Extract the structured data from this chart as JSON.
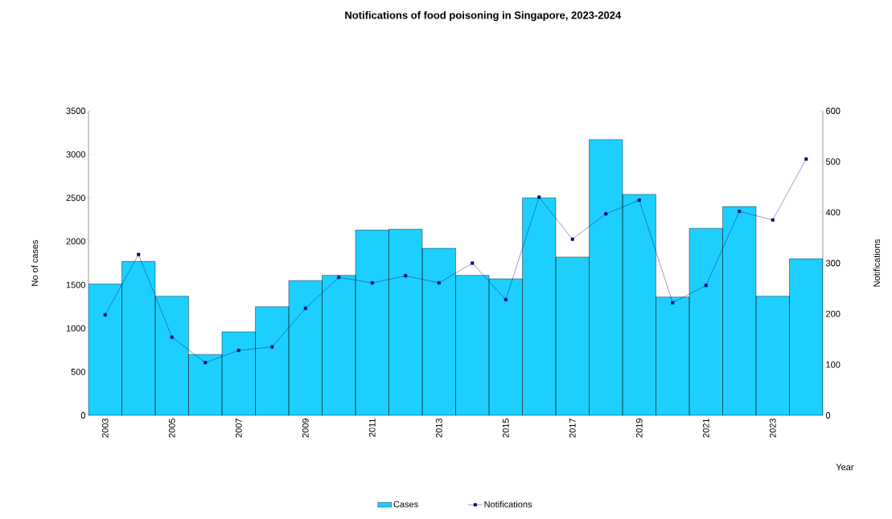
{
  "chart_data": {
    "type": "bar",
    "title": "Notifications of food poisoning in Singapore, 2023-2024",
    "xlabel": "Year",
    "ylabel": "No of cases",
    "y2label": "Notifications",
    "categories": [
      "2003",
      null,
      "2005",
      null,
      "2007",
      null,
      "2009",
      null,
      "2011",
      null,
      "2013",
      null,
      "2015",
      null,
      "2017",
      null,
      "2019",
      null,
      "2021",
      null,
      "2023",
      null
    ],
    "series": [
      {
        "name": "Cases",
        "color": "#1ccfff",
        "values": [
          1510,
          1770,
          1370,
          700,
          960,
          1250,
          1550,
          1610,
          2130,
          2140,
          1920,
          1610,
          1570,
          2500,
          1820,
          3170,
          2540,
          1360,
          2150,
          2400,
          1370,
          1800
        ]
      },
      {
        "name": "Notifications",
        "type": "line",
        "axis": "y2",
        "color": "#000080",
        "values": [
          198,
          317,
          154,
          104,
          128,
          135,
          211,
          272,
          261,
          275,
          261,
          300,
          228,
          430,
          347,
          397,
          424,
          222,
          256,
          402,
          385,
          505
        ]
      }
    ],
    "ylim": [
      0,
      3500
    ],
    "yticks": [
      0,
      500,
      1000,
      1500,
      2000,
      2500,
      3000,
      3500
    ],
    "y2lim": [
      0,
      600
    ],
    "y2ticks": [
      0,
      100,
      200,
      300,
      400,
      500,
      600
    ],
    "legend": "bottom",
    "marker": "square",
    "line_style": "solid"
  }
}
